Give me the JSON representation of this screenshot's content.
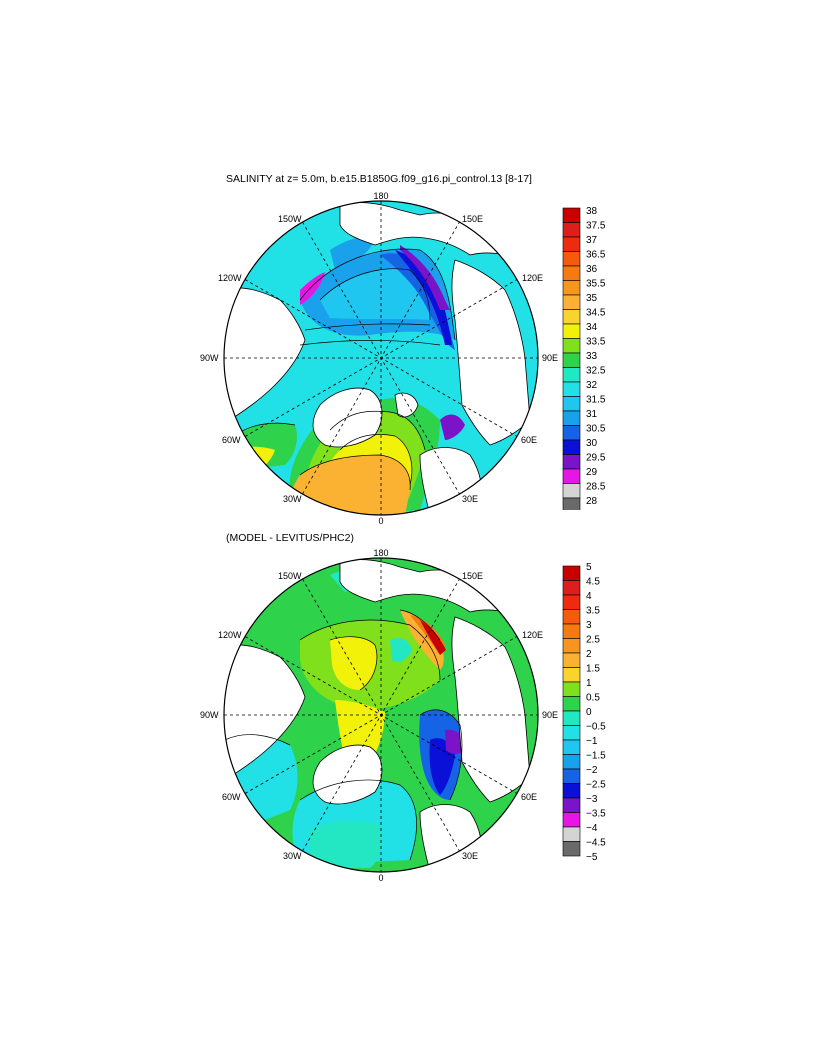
{
  "panels": [
    {
      "id": "salinity",
      "title": "SALINITY at z=   5.0m, b.e15.B1850G.f09_g16.pi_control.13 [8-17]",
      "lon_labels": {
        "top": "180",
        "bottom": "0",
        "left": "90W",
        "right": "90E",
        "upper_left_inner": "150W",
        "upper_left_outer": "120W",
        "upper_right_inner": "150E",
        "upper_right_outer": "120E",
        "lower_left_outer": "60W",
        "lower_left_inner": "30W",
        "lower_right_outer": "60E",
        "lower_right_inner": "30E"
      },
      "colorbar": {
        "labels": [
          "38",
          "37.5",
          "37",
          "36.5",
          "36",
          "35.5",
          "35",
          "34.5",
          "34",
          "33.5",
          "33",
          "32.5",
          "32",
          "31.5",
          "31",
          "30.5",
          "30",
          "29.5",
          "29",
          "28.5",
          "28"
        ],
        "colors": [
          "#c80000",
          "#dc1e1e",
          "#ee2b0f",
          "#f65a0c",
          "#f57a10",
          "#f6961f",
          "#fbb232",
          "#f9d42c",
          "#f1f10a",
          "#7fe01b",
          "#2ed24b",
          "#23e7c3",
          "#22e1e6",
          "#1ec6f0",
          "#19a2eb",
          "#1664e6",
          "#0a10d7",
          "#7b14c8",
          "#e616e6",
          "#d4d4d4",
          "#6a6a6a"
        ]
      }
    },
    {
      "id": "difference",
      "title": "(MODEL - LEVITUS/PHC2)",
      "lon_labels": {
        "top": "180",
        "bottom": "0",
        "left": "90W",
        "right": "90E",
        "upper_left_inner": "150W",
        "upper_left_outer": "120W",
        "upper_right_inner": "150E",
        "upper_right_outer": "120E",
        "lower_left_outer": "60W",
        "lower_left_inner": "30W",
        "lower_right_outer": "60E",
        "lower_right_inner": "30E"
      },
      "colorbar": {
        "labels": [
          "5",
          "4.5",
          "4",
          "3.5",
          "3",
          "2.5",
          "2",
          "1.5",
          "1",
          "0.5",
          "0",
          "−0.5",
          "−1",
          "−1.5",
          "−2",
          "−2.5",
          "−3",
          "−3.5",
          "−4",
          "−4.5",
          "−5"
        ],
        "colors": [
          "#c80000",
          "#dc1e1e",
          "#ee2b0f",
          "#f65a0c",
          "#f57a10",
          "#f6961f",
          "#fbb232",
          "#f9d42c",
          "#7fe01b",
          "#2ed24b",
          "#23e7c3",
          "#22e1e6",
          "#1ec6f0",
          "#19a2eb",
          "#1664e6",
          "#0a10d7",
          "#7b14c8",
          "#e616e6",
          "#d4d4d4",
          "#6a6a6a"
        ]
      }
    }
  ]
}
